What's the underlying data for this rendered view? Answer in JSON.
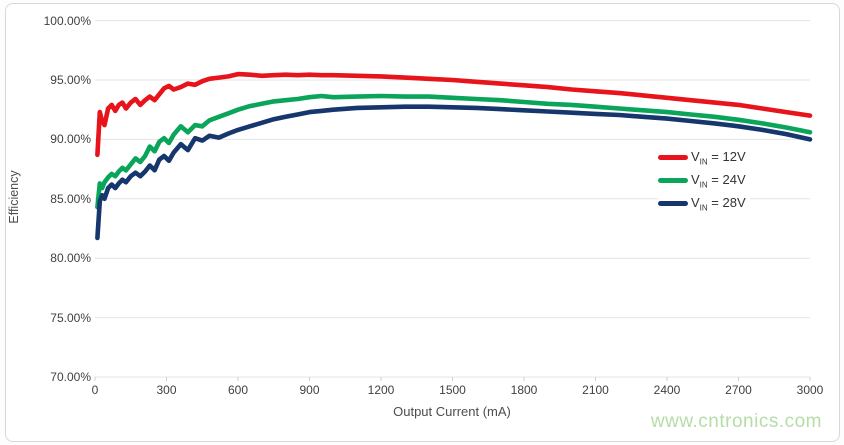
{
  "watermark": {
    "text": "www.cntronics.com",
    "color": "#b5dda6"
  },
  "axis": {
    "tick_color": "#cfcfcf",
    "grid_color": "#e4e4e4",
    "label_color": "#404040"
  },
  "chart_data": {
    "type": "line",
    "title": "",
    "xlabel": "Output Current (mA)",
    "ylabel": "Efficiency",
    "xlim": [
      0,
      3000
    ],
    "ylim": [
      70,
      100
    ],
    "x_tick_step": 300,
    "y_tick_step": 5,
    "y_tick_format": "percent-2-decimals",
    "grid": "horizontal",
    "legend_position": "middle-right",
    "x": [
      10,
      20,
      30,
      40,
      55,
      70,
      85,
      100,
      115,
      130,
      150,
      170,
      190,
      210,
      230,
      250,
      270,
      290,
      310,
      330,
      360,
      390,
      420,
      450,
      480,
      520,
      560,
      600,
      650,
      700,
      750,
      800,
      850,
      900,
      950,
      1000,
      1100,
      1200,
      1300,
      1400,
      1500,
      1600,
      1700,
      1800,
      1900,
      2000,
      2100,
      2200,
      2300,
      2400,
      2500,
      2600,
      2700,
      2800,
      2900,
      3000
    ],
    "series": [
      {
        "name": "VIN = 12V",
        "legend": {
          "prefix": "V",
          "sub": "IN",
          "suffix": " = 12V"
        },
        "color": "#e8141c",
        "values": [
          88.7,
          92.3,
          91.5,
          91.2,
          92.6,
          92.9,
          92.4,
          92.9,
          93.1,
          92.6,
          93.1,
          93.4,
          92.9,
          93.3,
          93.6,
          93.3,
          93.8,
          94.3,
          94.5,
          94.2,
          94.4,
          94.7,
          94.6,
          94.9,
          95.1,
          95.2,
          95.3,
          95.5,
          95.45,
          95.35,
          95.4,
          95.45,
          95.4,
          95.45,
          95.4,
          95.4,
          95.35,
          95.3,
          95.2,
          95.1,
          95.0,
          94.85,
          94.7,
          94.55,
          94.4,
          94.2,
          94.05,
          93.9,
          93.7,
          93.5,
          93.3,
          93.1,
          92.9,
          92.6,
          92.3,
          92.0
        ]
      },
      {
        "name": "VIN = 24V",
        "legend": {
          "prefix": "V",
          "sub": "IN",
          "suffix": " = 24V"
        },
        "color": "#0aa55a",
        "values": [
          84.3,
          86.3,
          85.9,
          86.4,
          86.8,
          87.1,
          86.9,
          87.3,
          87.6,
          87.4,
          87.9,
          88.4,
          88.1,
          88.6,
          89.4,
          89.0,
          89.8,
          90.1,
          89.7,
          90.4,
          91.1,
          90.6,
          91.2,
          91.1,
          91.6,
          91.9,
          92.2,
          92.5,
          92.8,
          93.0,
          93.2,
          93.3,
          93.4,
          93.55,
          93.65,
          93.55,
          93.6,
          93.65,
          93.6,
          93.6,
          93.5,
          93.4,
          93.3,
          93.15,
          93.0,
          92.9,
          92.75,
          92.6,
          92.45,
          92.3,
          92.1,
          91.9,
          91.65,
          91.35,
          91.0,
          90.6
        ]
      },
      {
        "name": "VIN = 28V",
        "legend": {
          "prefix": "V",
          "sub": "IN",
          "suffix": " = 28V"
        },
        "color": "#16366e",
        "values": [
          81.7,
          84.8,
          85.3,
          85.0,
          85.9,
          86.2,
          85.9,
          86.3,
          86.6,
          86.4,
          86.9,
          87.2,
          86.9,
          87.3,
          87.8,
          87.4,
          88.3,
          88.6,
          88.2,
          88.9,
          89.6,
          89.1,
          90.1,
          89.9,
          90.3,
          90.15,
          90.5,
          90.8,
          91.1,
          91.4,
          91.7,
          91.9,
          92.1,
          92.3,
          92.4,
          92.5,
          92.65,
          92.7,
          92.75,
          92.75,
          92.7,
          92.65,
          92.55,
          92.45,
          92.35,
          92.25,
          92.15,
          92.05,
          91.9,
          91.75,
          91.55,
          91.35,
          91.1,
          90.8,
          90.45,
          90.0
        ]
      }
    ]
  }
}
